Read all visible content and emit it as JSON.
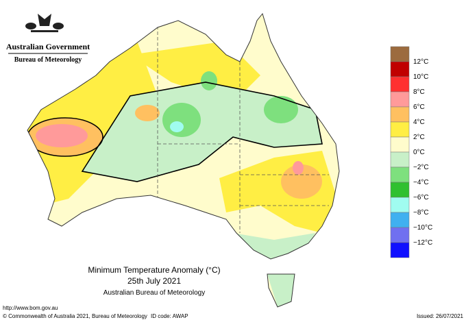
{
  "header": {
    "government": "Australian Government",
    "agency": "Bureau of Meteorology"
  },
  "title": {
    "line1": "Minimum Temperature Anomaly (°C)",
    "line2": "25th July 2021",
    "line3": "Australian Bureau of Meteorology"
  },
  "legend": {
    "colors": [
      "#9c6b3e",
      "#c00000",
      "#ff3030",
      "#ff9a9a",
      "#ffc060",
      "#ffee44",
      "#fffccc",
      "#c8f0c8",
      "#7ee07e",
      "#30c030",
      "#a0fcf0",
      "#40b0f0",
      "#7070f0",
      "#1010ff"
    ],
    "labels": [
      "12°C",
      "10°C",
      "8°C",
      "6°C",
      "4°C",
      "2°C",
      "0°C",
      "−2°C",
      "−4°C",
      "−6°C",
      "−8°C",
      "−10°C",
      "−12°C"
    ]
  },
  "footer": {
    "url": "http://www.bom.gov.au",
    "copyright": "© Commonwealth of Australia 2021, Bureau of Meteorology",
    "id_code": "ID code: AWAP",
    "issued": "Issued: 26/07/2021"
  }
}
